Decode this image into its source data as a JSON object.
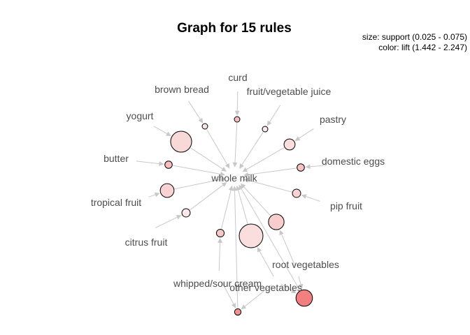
{
  "title": "Graph for 15 rules",
  "legend": {
    "size_line": "size: support (0.025 - 0.075)",
    "color_line": "color: lift (1.442 - 2.247)"
  },
  "items": {
    "whole_milk": "whole milk",
    "curd": "curd",
    "brown_bread": "brown bread",
    "fruit_vegetable_juice": "fruit/vegetable juice",
    "yogurt": "yogurt",
    "pastry": "pastry",
    "butter": "butter",
    "domestic_eggs": "domestic eggs",
    "tropical_fruit": "tropical fruit",
    "pip_fruit": "pip fruit",
    "citrus_fruit": "citrus fruit",
    "root_vegetables": "root vegetables",
    "whipped_sour_cream": "whipped/sour cream",
    "other_vegetables": "other vegetables"
  },
  "rules": [
    {
      "lhs": [
        "curd"
      ],
      "rhs": "whole milk",
      "support_level": 0.0,
      "lift_level": 0.45
    },
    {
      "lhs": [
        "brown bread"
      ],
      "rhs": "whole milk",
      "support_level": 0.0,
      "lift_level": 0.1
    },
    {
      "lhs": [
        "fruit/vegetable juice"
      ],
      "rhs": "whole milk",
      "support_level": 0.0,
      "lift_level": 0.05
    },
    {
      "lhs": [
        "yogurt"
      ],
      "rhs": "whole milk",
      "support_level": 0.85,
      "lift_level": 0.2
    },
    {
      "lhs": [
        "pastry"
      ],
      "rhs": "whole milk",
      "support_level": 0.3,
      "lift_level": 0.15
    },
    {
      "lhs": [
        "butter"
      ],
      "rhs": "whole milk",
      "support_level": 0.1,
      "lift_level": 0.45
    },
    {
      "lhs": [
        "domestic eggs"
      ],
      "rhs": "whole milk",
      "support_level": 0.1,
      "lift_level": 0.4
    },
    {
      "lhs": [
        "tropical fruit"
      ],
      "rhs": "whole milk",
      "support_level": 0.45,
      "lift_level": 0.25
    },
    {
      "lhs": [
        "pip fruit"
      ],
      "rhs": "whole milk",
      "support_level": 0.15,
      "lift_level": 0.25
    },
    {
      "lhs": [
        "citrus fruit"
      ],
      "rhs": "whole milk",
      "support_level": 0.15,
      "lift_level": 0.05
    },
    {
      "lhs": [
        "root vegetables"
      ],
      "rhs": "whole milk",
      "support_level": 0.55,
      "lift_level": 0.3
    },
    {
      "lhs": [
        "whipped/sour cream"
      ],
      "rhs": "whole milk",
      "support_level": 0.12,
      "lift_level": 0.35
    },
    {
      "lhs": [
        "other vegetables"
      ],
      "rhs": "whole milk",
      "support_level": 1.0,
      "lift_level": 0.15
    },
    {
      "lhs": [
        "root vegetables",
        "other vegetables"
      ],
      "rhs": "whole milk",
      "support_level": 0.6,
      "lift_level": 1.0
    },
    {
      "lhs": [
        "whipped/sour cream",
        "other vegetables"
      ],
      "rhs": "whole milk",
      "support_level": 0.05,
      "lift_level": 0.85
    }
  ]
}
